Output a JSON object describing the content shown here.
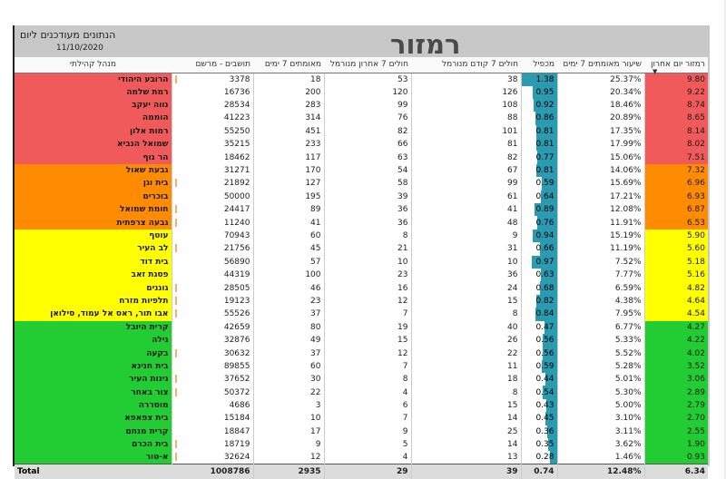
{
  "header": {
    "title": "רמזור",
    "note": "הנתונים מעודכנים ליום",
    "date": "11/10/2020"
  },
  "columns": [
    "מנהל קהילתי",
    "תושבים - מרשם",
    "מאומתים 7 ימים",
    "חולים 7 אחרון מנורמל",
    "חולים 7 קודם מנורמל",
    "מכפיל",
    "שיעור מאומתים 7 ימים",
    "רמזור יום אחרון"
  ],
  "colors": {
    "red": "#f05a5a",
    "orange": "#ff8c00",
    "yellow": "#ffff00",
    "green": "#22cc33"
  },
  "rows": [
    {
      "name": "הרובע היהודי",
      "pop": "3378",
      "conf": "18",
      "last": "53",
      "prev": "38",
      "k": "1.38",
      "rate": "25.37%",
      "score": "9.80",
      "zone": "red",
      "bar": 1
    },
    {
      "name": "רמת שלמה",
      "pop": "16736",
      "conf": "200",
      "last": "120",
      "prev": "126",
      "k": "0.95",
      "rate": "20.34%",
      "score": "9.22",
      "zone": "red",
      "bar": 0
    },
    {
      "name": "נווה יעקב",
      "pop": "28534",
      "conf": "283",
      "last": "99",
      "prev": "108",
      "k": "0.92",
      "rate": "18.46%",
      "score": "8.74",
      "zone": "red",
      "bar": 0
    },
    {
      "name": "הוממה",
      "pop": "41223",
      "conf": "314",
      "last": "76",
      "prev": "88",
      "k": "0.86",
      "rate": "20.89%",
      "score": "8.65",
      "zone": "red",
      "bar": 0
    },
    {
      "name": "רמות אלון",
      "pop": "55250",
      "conf": "451",
      "last": "82",
      "prev": "101",
      "k": "0.81",
      "rate": "17.35%",
      "score": "8.14",
      "zone": "red",
      "bar": 0
    },
    {
      "name": "שמואל הנביא",
      "pop": "35215",
      "conf": "233",
      "last": "66",
      "prev": "81",
      "k": "0.81",
      "rate": "17.99%",
      "score": "8.02",
      "zone": "red",
      "bar": 0
    },
    {
      "name": "הר נוף",
      "pop": "18462",
      "conf": "117",
      "last": "63",
      "prev": "82",
      "k": "0.77",
      "rate": "15.06%",
      "score": "7.51",
      "zone": "red",
      "bar": 0
    },
    {
      "name": "גבעת שאול",
      "pop": "31271",
      "conf": "170",
      "last": "54",
      "prev": "67",
      "k": "0.81",
      "rate": "14.06%",
      "score": "7.32",
      "zone": "orange",
      "bar": 0
    },
    {
      "name": "בית וגן",
      "pop": "21892",
      "conf": "127",
      "last": "58",
      "prev": "99",
      "k": "0.59",
      "rate": "15.69%",
      "score": "6.96",
      "zone": "orange",
      "bar": 1
    },
    {
      "name": "בוכרים",
      "pop": "50000",
      "conf": "195",
      "last": "39",
      "prev": "61",
      "k": "0.64",
      "rate": "17.21%",
      "score": "6.93",
      "zone": "orange",
      "bar": 0
    },
    {
      "name": "חומת שמואל",
      "pop": "24417",
      "conf": "89",
      "last": "36",
      "prev": "41",
      "k": "0.89",
      "rate": "12.08%",
      "score": "6.87",
      "zone": "orange",
      "bar": 1
    },
    {
      "name": "גבעה צרפתית",
      "pop": "11240",
      "conf": "41",
      "last": "36",
      "prev": "48",
      "k": "0.76",
      "rate": "11.91%",
      "score": "6.53",
      "zone": "orange",
      "bar": 1
    },
    {
      "name": "עוטף",
      "pop": "70943",
      "conf": "60",
      "last": "8",
      "prev": "9",
      "k": "0.94",
      "rate": "15.19%",
      "score": "5.90",
      "zone": "yellow",
      "bar": 0
    },
    {
      "name": "לב העיר",
      "pop": "21756",
      "conf": "45",
      "last": "21",
      "prev": "31",
      "k": "0.66",
      "rate": "11.19%",
      "score": "5.60",
      "zone": "yellow",
      "bar": 1
    },
    {
      "name": "בית דוד",
      "pop": "56890",
      "conf": "57",
      "last": "10",
      "prev": "10",
      "k": "0.97",
      "rate": "7.52%",
      "score": "5.18",
      "zone": "yellow",
      "bar": 0
    },
    {
      "name": "פסגת זאב",
      "pop": "44319",
      "conf": "100",
      "last": "23",
      "prev": "36",
      "k": "0.63",
      "rate": "7.77%",
      "score": "5.16",
      "zone": "yellow",
      "bar": 0
    },
    {
      "name": "גוננים",
      "pop": "28505",
      "conf": "46",
      "last": "16",
      "prev": "24",
      "k": "0.68",
      "rate": "6.59%",
      "score": "4.82",
      "zone": "yellow",
      "bar": 1
    },
    {
      "name": "תלפיות מזרח",
      "pop": "19123",
      "conf": "23",
      "last": "12",
      "prev": "15",
      "k": "0.82",
      "rate": "4.38%",
      "score": "4.64",
      "zone": "yellow",
      "bar": 1
    },
    {
      "name": "אבו תור, ראס אל עמוד, סילואן",
      "pop": "55526",
      "conf": "37",
      "last": "7",
      "prev": "8",
      "k": "0.84",
      "rate": "7.95%",
      "score": "4.54",
      "zone": "yellow",
      "bar": 1
    },
    {
      "name": "קרית היובל",
      "pop": "42659",
      "conf": "80",
      "last": "19",
      "prev": "40",
      "k": "0.47",
      "rate": "6.77%",
      "score": "4.27",
      "zone": "green",
      "bar": 0
    },
    {
      "name": "גילה",
      "pop": "32876",
      "conf": "49",
      "last": "15",
      "prev": "26",
      "k": "0.56",
      "rate": "5.33%",
      "score": "4.22",
      "zone": "green",
      "bar": 0
    },
    {
      "name": "בקעה",
      "pop": "30632",
      "conf": "37",
      "last": "12",
      "prev": "22",
      "k": "0.56",
      "rate": "5.52%",
      "score": "4.02",
      "zone": "green",
      "bar": 1
    },
    {
      "name": "בית חנינא",
      "pop": "89855",
      "conf": "60",
      "last": "7",
      "prev": "11",
      "k": "0.59",
      "rate": "5.28%",
      "score": "3.52",
      "zone": "green",
      "bar": 0
    },
    {
      "name": "גינות העיר",
      "pop": "37652",
      "conf": "30",
      "last": "8",
      "prev": "18",
      "k": "0.44",
      "rate": "5.01%",
      "score": "3.06",
      "zone": "green",
      "bar": 1
    },
    {
      "name": "צור באחר",
      "pop": "50372",
      "conf": "22",
      "last": "4",
      "prev": "8",
      "k": "0.54",
      "rate": "5.30%",
      "score": "2.89",
      "zone": "green",
      "bar": 1
    },
    {
      "name": "מוסררה",
      "pop": "4686",
      "conf": "3",
      "last": "6",
      "prev": "15",
      "k": "0.43",
      "rate": "5.00%",
      "score": "2.79",
      "zone": "green",
      "bar": 0
    },
    {
      "name": "בית צפאפא",
      "pop": "15184",
      "conf": "10",
      "last": "7",
      "prev": "14",
      "k": "0.45",
      "rate": "3.10%",
      "score": "2.70",
      "zone": "green",
      "bar": 0
    },
    {
      "name": "קרית מנחם",
      "pop": "18847",
      "conf": "17",
      "last": "9",
      "prev": "25",
      "k": "0.36",
      "rate": "3.11%",
      "score": "2.55",
      "zone": "green",
      "bar": 0
    },
    {
      "name": "בית הכרם",
      "pop": "18719",
      "conf": "9",
      "last": "5",
      "prev": "14",
      "k": "0.35",
      "rate": "3.62%",
      "score": "1.90",
      "zone": "green",
      "bar": 1
    },
    {
      "name": "א-טור",
      "pop": "32624",
      "conf": "12",
      "last": "4",
      "prev": "13",
      "k": "0.28",
      "rate": "1.46%",
      "score": "0.93",
      "zone": "green",
      "bar": 1
    }
  ],
  "total": {
    "label": "Total",
    "pop": "1008786",
    "conf": "2935",
    "last": "29",
    "prev": "39",
    "k": "0.74",
    "rate": "12.48%",
    "score": "6.34"
  }
}
